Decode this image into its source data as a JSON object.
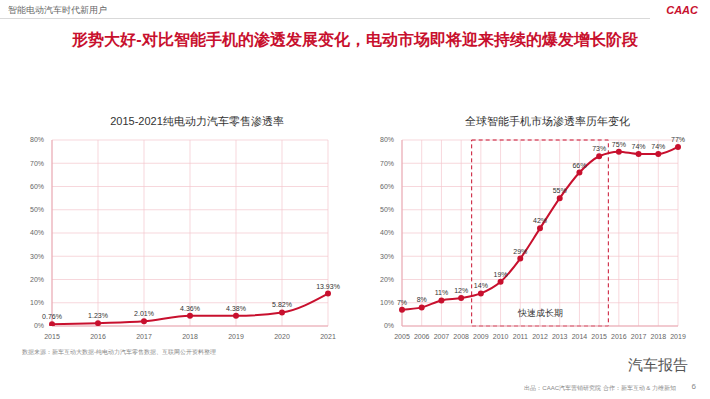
{
  "header": {
    "section": "智能电动汽车时代新用户",
    "logo": "CAAC"
  },
  "title": "形势大好-对比智能手机的渗透发展变化，电动市场即将迎来持续的爆发增长阶段",
  "chart_data": [
    {
      "type": "line",
      "title": "2015-2021纯电动力汽车零售渗透率",
      "categories": [
        "2015",
        "2016",
        "2017",
        "2018",
        "2019",
        "2020",
        "2021"
      ],
      "values": [
        0.76,
        1.23,
        2.01,
        4.36,
        4.38,
        5.82,
        13.93
      ],
      "value_labels": [
        "0.76%",
        "1.23%",
        "2.01%",
        "4.36%",
        "4.38%",
        "5.82%",
        "13.93%"
      ],
      "color": "#c8102e",
      "marker": "circle",
      "line_style": "solid",
      "ylim": [
        0,
        80
      ],
      "yticks": [
        {
          "value": 0,
          "label": "0%"
        },
        {
          "value": 10,
          "label": "10%"
        },
        {
          "value": 20,
          "label": "20%"
        },
        {
          "value": 30,
          "label": "30%"
        },
        {
          "value": 40,
          "label": "40%"
        },
        {
          "value": 50,
          "label": "50%"
        },
        {
          "value": 60,
          "label": "60%"
        },
        {
          "value": 70,
          "label": "70%"
        },
        {
          "value": 80,
          "label": "80%"
        }
      ],
      "grid": true,
      "data_labels": true
    },
    {
      "type": "line",
      "title": "全球智能手机市场渗透率历年变化",
      "categories": [
        "2005",
        "2006",
        "2007",
        "2008",
        "2009",
        "2010",
        "2011",
        "2012",
        "2013",
        "2014",
        "2015",
        "2016",
        "2017",
        "2018",
        "2019"
      ],
      "values": [
        7,
        8,
        11,
        12,
        14,
        19,
        29,
        42,
        55,
        66,
        73,
        75,
        74,
        74,
        77
      ],
      "value_labels": [
        "7%",
        "8%",
        "11%",
        "12%",
        "14%",
        "19%",
        "29%",
        "42%",
        "55%",
        "66%",
        "73%",
        "75%",
        "74%",
        "74%",
        "77%"
      ],
      "color": "#c8102e",
      "marker": "circle",
      "line_style": "solid",
      "ylim": [
        0,
        80
      ],
      "yticks": [
        {
          "value": 0,
          "label": "0%"
        },
        {
          "value": 10,
          "label": "10%"
        },
        {
          "value": 20,
          "label": "20%"
        },
        {
          "value": 30,
          "label": "30%"
        },
        {
          "value": 40,
          "label": "40%"
        },
        {
          "value": 50,
          "label": "50%"
        },
        {
          "value": 60,
          "label": "60%"
        },
        {
          "value": 70,
          "label": "70%"
        },
        {
          "value": 80,
          "label": "80%"
        }
      ],
      "grid": true,
      "data_labels": true,
      "annotations": [
        {
          "from": "2009",
          "to": "2015",
          "label": "快速成长期"
        }
      ]
    }
  ],
  "footer": {
    "source_note": "数据来源：新车互动大数据-纯电动力汽车零售数据、互联网公开资料整理",
    "credit": "出品：CAAC汽车营销研究院  合作：新车互动 & 力维新知",
    "page": "6",
    "watermark": "汽车报告"
  }
}
